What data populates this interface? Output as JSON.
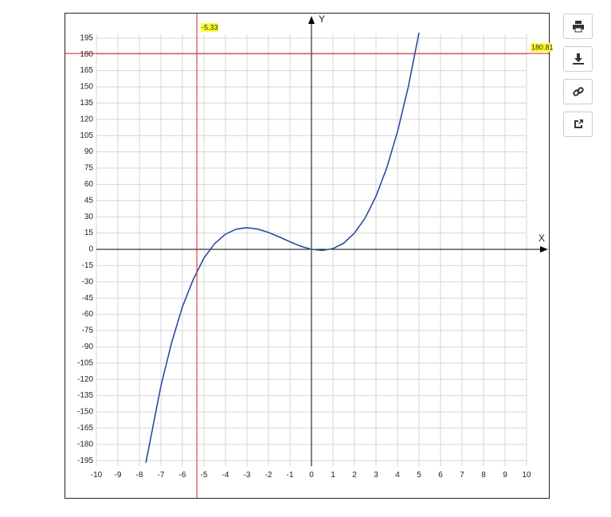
{
  "chart_data": {
    "type": "line",
    "x_label": "X",
    "y_label": "Y",
    "x": [
      -7.7,
      -7,
      -6.5,
      -6,
      -5.5,
      -5,
      -4.5,
      -4,
      -3.5,
      -3,
      -2.5,
      -2,
      -1.5,
      -1,
      -0.5,
      0,
      0.5,
      1,
      1.5,
      2,
      2.5,
      3,
      3.5,
      4,
      4.5,
      5
    ],
    "values": [
      -197,
      -126,
      -86,
      -53,
      -28,
      -8,
      5.3,
      14,
      18.6,
      20,
      18.7,
      15.6,
      11.5,
      7,
      2.9,
      0,
      -1,
      0.7,
      5.7,
      15,
      29.1,
      49,
      75.2,
      108.6,
      149.9,
      200
    ],
    "color": "#2b4c9b",
    "xlim": [
      -10,
      10
    ],
    "xticks": [
      -10,
      -9,
      -8,
      -7,
      -6,
      -5,
      -4,
      -3,
      -2,
      -1,
      0,
      1,
      2,
      3,
      4,
      5,
      6,
      7,
      8,
      9,
      10
    ],
    "ylim": [
      -200,
      200
    ],
    "yticks": [
      -195,
      -180,
      -165,
      -150,
      -135,
      -120,
      -105,
      -90,
      -75,
      -60,
      -45,
      -30,
      -15,
      0,
      15,
      30,
      45,
      60,
      75,
      90,
      105,
      120,
      135,
      150,
      165,
      180,
      195
    ],
    "grid": true,
    "crosshair": {
      "x": -5.33,
      "y": 180.81,
      "color": "#cc2222"
    }
  }
}
